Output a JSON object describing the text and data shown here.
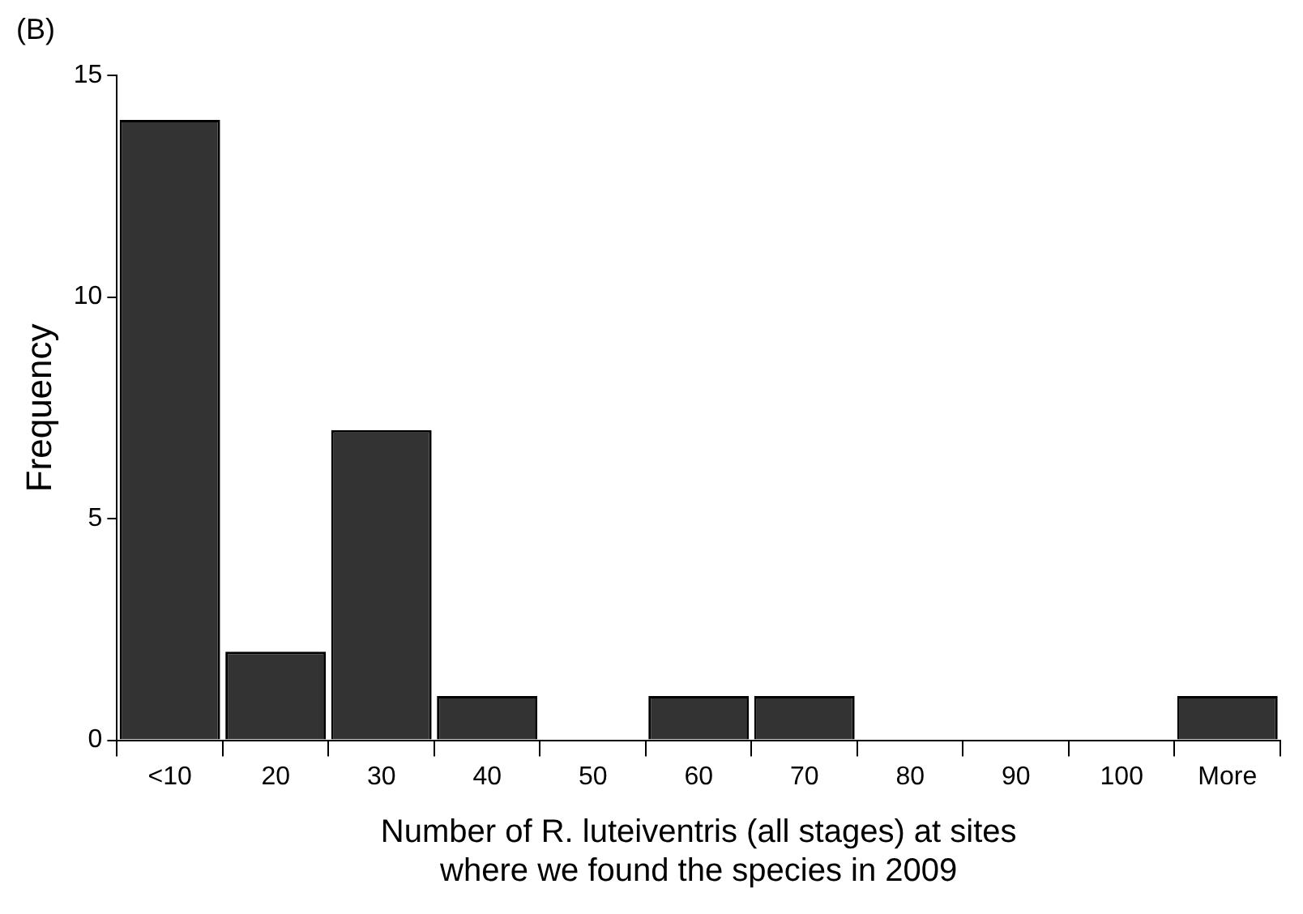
{
  "chart_data": {
    "type": "bar",
    "annotations": [
      "(B)"
    ],
    "xlabel": "Number of R. luteiventris (all stages) at sites\nwhere we found the species in 2009",
    "ylabel": "Frequency",
    "categories": [
      "<10",
      "20",
      "30",
      "40",
      "50",
      "60",
      "70",
      "80",
      "90",
      "100",
      "More"
    ],
    "values": [
      14,
      2,
      7,
      1,
      0,
      1,
      1,
      0,
      0,
      0,
      1
    ],
    "color": "#333333",
    "ylim": [
      0,
      15
    ],
    "yticks": [
      0,
      5,
      10,
      15
    ],
    "grid": false,
    "legend": false
  }
}
